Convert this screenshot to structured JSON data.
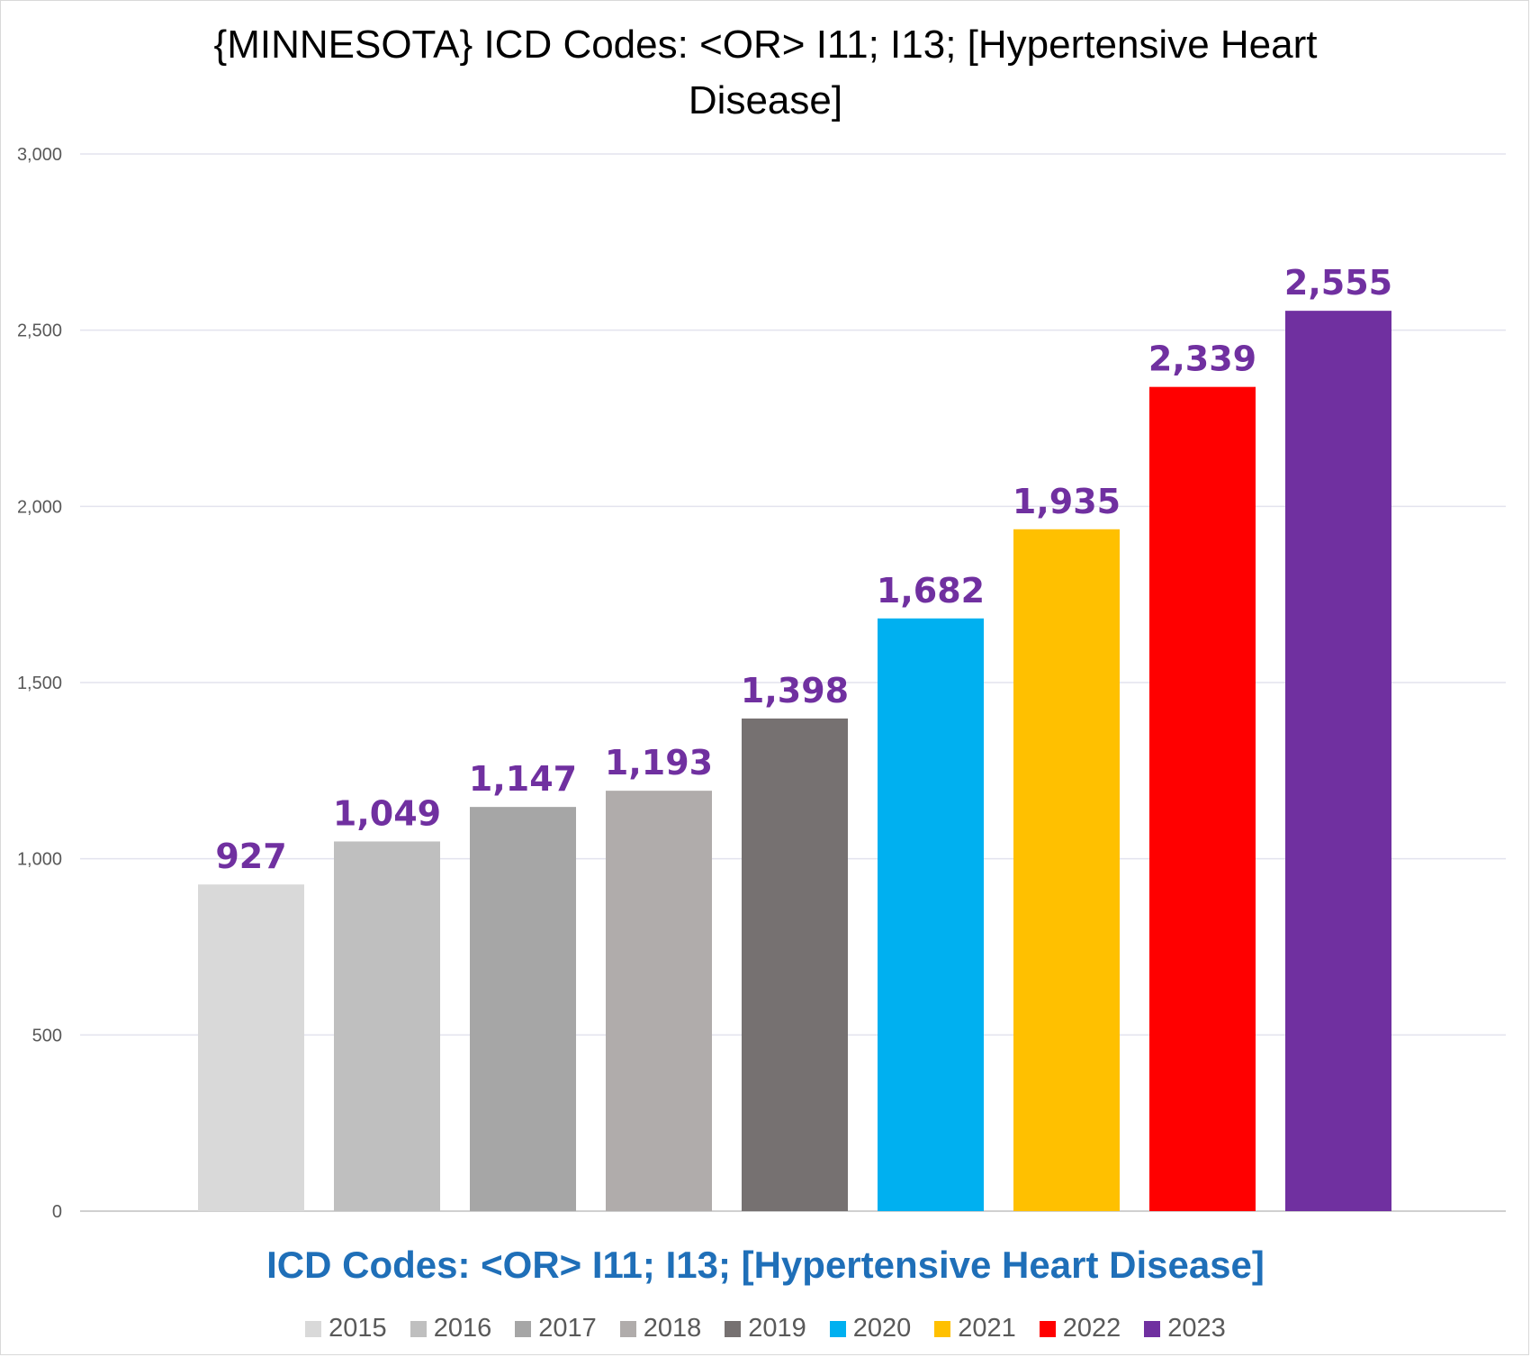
{
  "chart_data": {
    "type": "bar",
    "title_lines": [
      "{MINNESOTA}  ICD Codes: <OR>  I11; I13;  [Hypertensive Heart",
      "Disease]"
    ],
    "xlabel": "ICD Codes: <OR>  I11; I13;  [Hypertensive Heart Disease]",
    "ylabel": "",
    "ylim": [
      0,
      3000
    ],
    "yticks": [
      0,
      500,
      1000,
      1500,
      2000,
      2500,
      3000
    ],
    "ytick_labels": [
      "0",
      "500",
      "1,000",
      "1,500",
      "2,000",
      "2,500",
      "3,000"
    ],
    "grid": true,
    "legend_position": "bottom",
    "data_label_color": "#7030a0",
    "axis_label_color": "#1f6fb8",
    "categories": [
      "2015",
      "2016",
      "2017",
      "2018",
      "2019",
      "2020",
      "2021",
      "2022",
      "2023"
    ],
    "values": [
      927,
      1049,
      1147,
      1193,
      1398,
      1682,
      1935,
      2339,
      2555
    ],
    "value_labels": [
      "927",
      "1,049",
      "1,147",
      "1,193",
      "1,398",
      "1,682",
      "1,935",
      "2,339",
      "2,555"
    ],
    "colors": [
      "#d9d9d9",
      "#bfbfbf",
      "#a6a6a6",
      "#b0acab",
      "#767171",
      "#00b0f0",
      "#ffc000",
      "#ff0000",
      "#7030a0"
    ]
  }
}
